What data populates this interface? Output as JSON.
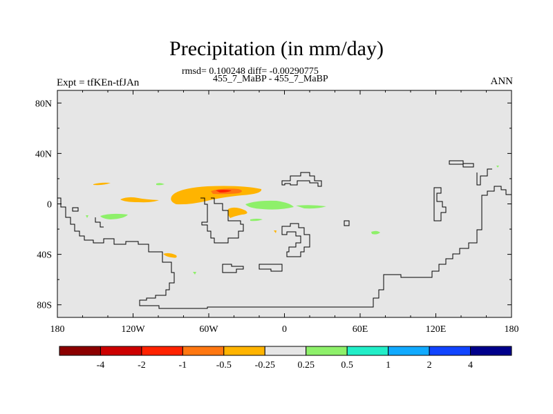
{
  "header": {
    "title": "Precipitation (in mm/day)",
    "stats": "rmsd= 0.100248 diff= -0.00290775",
    "subtitle": "455_7_MaBP - 455_7_MaBP",
    "left_label": "Expt = tfKEn-tfJAn",
    "right_label": "ANN"
  },
  "map": {
    "background_color": "#e6e6e6",
    "lat_ticks": [
      "80N",
      "40N",
      "0",
      "40S",
      "80S"
    ],
    "lon_ticks": [
      "180",
      "120W",
      "60W",
      "0",
      "60E",
      "120E",
      "180"
    ],
    "lat_values": [
      80,
      40,
      0,
      -40,
      -80
    ],
    "lon_values": [
      -180,
      -120,
      -60,
      0,
      60,
      120,
      180
    ],
    "lat_range": [
      -90,
      90
    ],
    "lon_range": [
      -180,
      180
    ]
  },
  "colorbar": {
    "colors": [
      "#8b0000",
      "#cc0000",
      "#ff2200",
      "#ff7711",
      "#ffb400",
      "#e6e6e6",
      "#8ef06a",
      "#22eec8",
      "#11aaff",
      "#1144ff",
      "#00008b"
    ],
    "labels": [
      "-4",
      "-2",
      "-1",
      "-0.5",
      "-0.25",
      "0.25",
      "0.5",
      "1",
      "2",
      "4"
    ]
  }
}
